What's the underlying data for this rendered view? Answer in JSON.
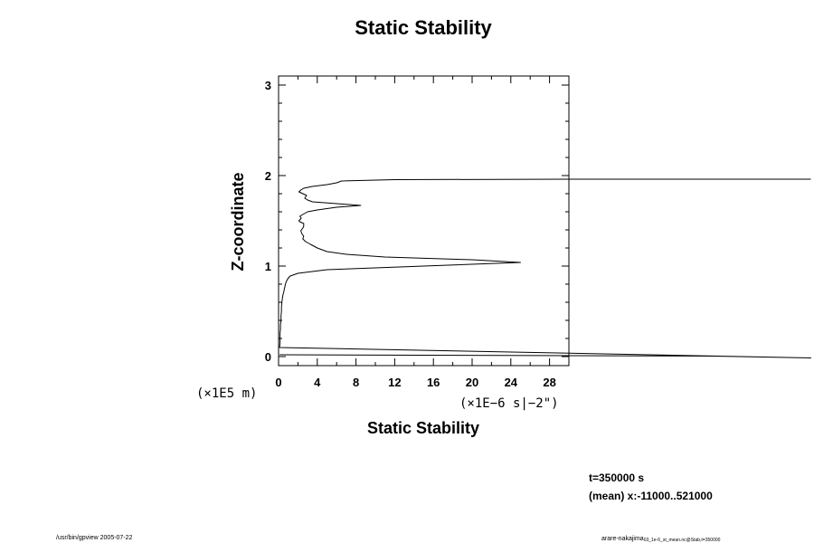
{
  "chart_data": {
    "type": "line",
    "title": "Static Stability",
    "xlabel": "Static Stability",
    "ylabel": "Z-coordinate",
    "x_unit": "(×1E−6 s|−2\")",
    "y_unit": "(×1E5 m)",
    "xlim": [
      0,
      30
    ],
    "ylim": [
      -0.1,
      3.1
    ],
    "x_ticks": [
      0,
      4,
      8,
      12,
      16,
      20,
      24,
      28
    ],
    "y_ticks": [
      0,
      1,
      2,
      3
    ],
    "grid": false,
    "series": [
      {
        "name": "",
        "x": [
          0.1,
          45,
          55,
          0.1,
          0.15,
          0.15,
          0.15,
          0.2,
          0.2,
          0.25,
          0.25,
          0.3,
          0.3,
          0.35,
          0.4,
          0.45,
          0.5,
          0.55,
          0.6,
          0.65,
          0.7,
          0.8,
          0.95,
          1.2,
          2,
          5,
          15,
          25,
          20,
          11,
          7,
          5,
          4,
          3.3,
          2.8,
          2.5,
          2.6,
          2.4,
          2.3,
          2.5,
          2.6,
          2.6,
          2.2,
          2.1,
          2.35,
          2.2,
          2.5,
          3,
          4,
          6,
          8.5,
          6,
          3.5,
          3,
          2.7,
          2.9,
          2.5,
          2.1,
          2.3,
          2.6,
          3.5,
          5,
          6,
          6.5,
          12,
          30,
          55
        ],
        "y": [
          0.02,
          0.005,
          -0.015,
          0.1,
          0.15,
          0.2,
          0.26,
          0.3,
          0.35,
          0.4,
          0.45,
          0.5,
          0.55,
          0.6,
          0.65,
          0.68,
          0.7,
          0.72,
          0.75,
          0.77,
          0.8,
          0.83,
          0.86,
          0.89,
          0.92,
          0.96,
          1.0,
          1.04,
          1.07,
          1.1,
          1.13,
          1.16,
          1.2,
          1.24,
          1.27,
          1.3,
          1.33,
          1.36,
          1.39,
          1.42,
          1.44,
          1.47,
          1.49,
          1.5,
          1.53,
          1.55,
          1.57,
          1.6,
          1.62,
          1.65,
          1.67,
          1.69,
          1.71,
          1.73,
          1.75,
          1.78,
          1.8,
          1.82,
          1.84,
          1.86,
          1.88,
          1.9,
          1.92,
          1.94,
          1.955,
          1.96,
          1.96
        ]
      }
    ]
  },
  "info": {
    "time": "t=350000 s",
    "mean": "(mean) x:-11000..521000"
  },
  "footer": {
    "left": "/usr/bin/gpview 2005-07-22",
    "right_main": "arare-nakajima",
    "right_sub": "03_1e-6_st_mean.nc@Stab,t=350000"
  }
}
